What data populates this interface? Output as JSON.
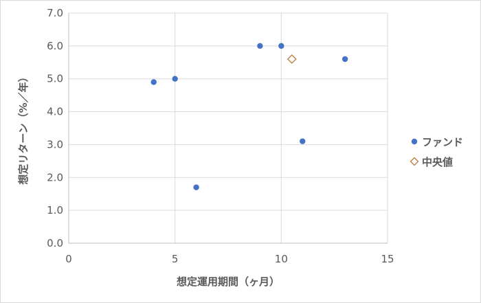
{
  "chart_data": {
    "type": "scatter",
    "title": "",
    "xlabel": "想定運用期間（ヶ月）",
    "ylabel": "想定リターン（%／年）",
    "xlim": [
      0,
      15
    ],
    "ylim": [
      0.0,
      7.0
    ],
    "x_ticks": [
      "0",
      "5",
      "10",
      "15"
    ],
    "y_ticks": [
      "0.0",
      "1.0",
      "2.0",
      "3.0",
      "4.0",
      "5.0",
      "6.0",
      "7.0"
    ],
    "grid": "on",
    "legend_position": "right",
    "series": [
      {
        "name": "ファンド",
        "marker": "circle",
        "color": "#4472c4",
        "points": [
          {
            "x": 4,
            "y": 4.9
          },
          {
            "x": 5,
            "y": 5.0
          },
          {
            "x": 6,
            "y": 1.7
          },
          {
            "x": 9,
            "y": 6.0
          },
          {
            "x": 10,
            "y": 6.0
          },
          {
            "x": 11,
            "y": 3.1
          },
          {
            "x": 13,
            "y": 5.6
          }
        ]
      },
      {
        "name": "中央値",
        "marker": "diamond-open",
        "color": "#c07b3c",
        "points": [
          {
            "x": 10.5,
            "y": 5.6
          }
        ]
      }
    ]
  }
}
